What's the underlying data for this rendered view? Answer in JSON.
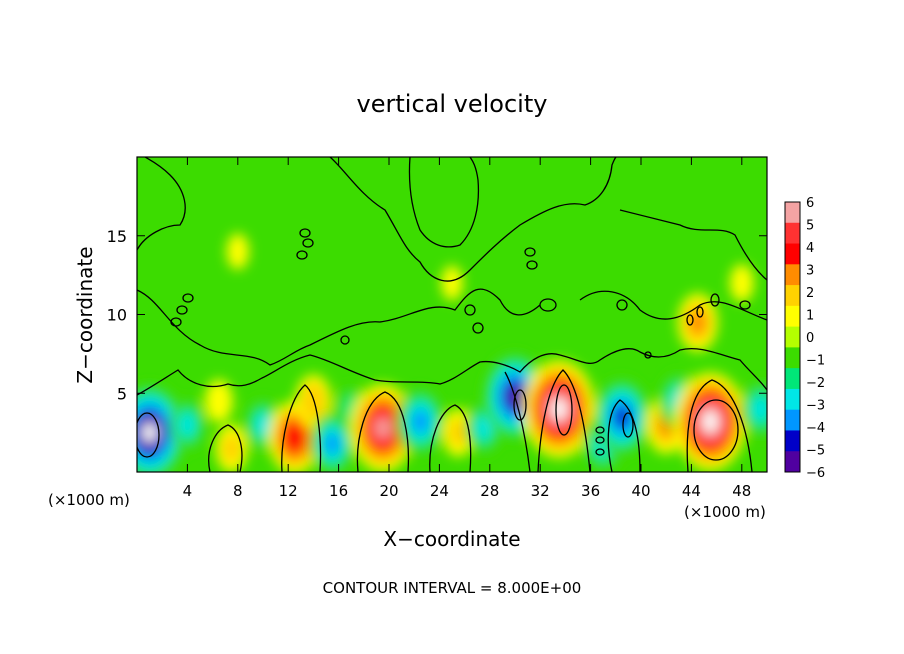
{
  "chart_data": {
    "type": "heatmap",
    "title": "vertical velocity",
    "xlabel": "X−coordinate",
    "ylabel": "Z−coordinate",
    "x_unit": "(×1000 m)",
    "x_unit_right": "(×1000 m)",
    "xlim": [
      0,
      50
    ],
    "ylim": [
      0,
      20
    ],
    "x_ticks": [
      4,
      8,
      12,
      16,
      20,
      24,
      28,
      32,
      36,
      40,
      44,
      48
    ],
    "x_tick_labels": [
      "4",
      "8",
      "12",
      "16",
      "20",
      "24",
      "28",
      "32",
      "36",
      "40",
      "44",
      "48"
    ],
    "y_ticks": [
      5,
      10,
      15
    ],
    "y_tick_labels": [
      "5",
      "10",
      "15"
    ],
    "colorbar": {
      "labels": [
        "6",
        "5",
        "4",
        "3",
        "2",
        "1",
        "0",
        "−1",
        "−2",
        "−3",
        "−4",
        "−5",
        "−6"
      ],
      "range": [
        -6,
        6
      ],
      "colors": [
        "#f4a3a3",
        "#ff3232",
        "#ff0000",
        "#ff8c00",
        "#ffd200",
        "#ffff00",
        "#b4ff00",
        "#3cdc00",
        "#00e678",
        "#00e6e6",
        "#0096ff",
        "#0000c8",
        "#5000a0"
      ]
    },
    "annotation": "CONTOUR INTERVAL = 8.000E+00",
    "features": [
      {
        "x": 1.0,
        "z": 2.5,
        "value": -7
      },
      {
        "x": 4.0,
        "z": 3.0,
        "value": -2.5
      },
      {
        "x": 6.5,
        "z": 4.5,
        "value": 1.5
      },
      {
        "x": 7.5,
        "z": 1.5,
        "value": 2
      },
      {
        "x": 10.0,
        "z": 3.0,
        "value": -2.5
      },
      {
        "x": 12.5,
        "z": 2.2,
        "value": 4.5
      },
      {
        "x": 14.0,
        "z": 4.5,
        "value": 2.5
      },
      {
        "x": 15.5,
        "z": 1.8,
        "value": -3.5
      },
      {
        "x": 17.0,
        "z": 4.0,
        "value": -2
      },
      {
        "x": 19.5,
        "z": 2.8,
        "value": 6
      },
      {
        "x": 22.5,
        "z": 3.2,
        "value": -4
      },
      {
        "x": 25.5,
        "z": 2.5,
        "value": 2
      },
      {
        "x": 27.5,
        "z": 2.8,
        "value": -2.5
      },
      {
        "x": 30.0,
        "z": 4.8,
        "value": -6
      },
      {
        "x": 33.5,
        "z": 4.0,
        "value": 7
      },
      {
        "x": 37.0,
        "z": 1.8,
        "value": -3
      },
      {
        "x": 38.5,
        "z": 3.5,
        "value": -5
      },
      {
        "x": 42.0,
        "z": 3.0,
        "value": 3
      },
      {
        "x": 43.0,
        "z": 4.5,
        "value": -3
      },
      {
        "x": 45.5,
        "z": 3.2,
        "value": 7
      },
      {
        "x": 44.5,
        "z": 9.5,
        "value": 3
      },
      {
        "x": 49.5,
        "z": 4.0,
        "value": -3
      },
      {
        "x": 8.0,
        "z": 14.0,
        "value": 0.8
      },
      {
        "x": 25.0,
        "z": 12.0,
        "value": 0.7
      },
      {
        "x": 48.0,
        "z": 12.0,
        "value": 1
      }
    ]
  }
}
